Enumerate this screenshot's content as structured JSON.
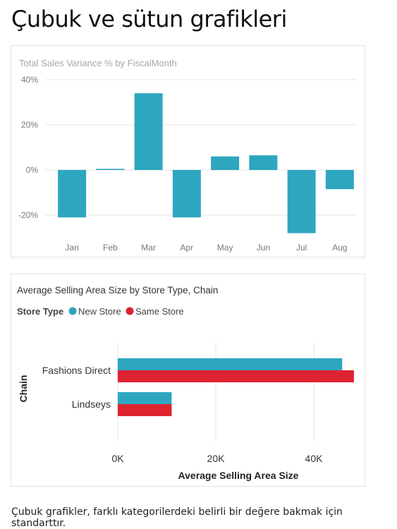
{
  "page": {
    "title": "Çubuk ve sütun grafikleri",
    "caption": "Çubuk grafikler, farklı kategorilerdeki belirli bir değere bakmak için standarttır."
  },
  "colors": {
    "teal": "#2ea6c0",
    "red": "#df2230",
    "grid": "#e6e6e6",
    "axis_text": "#777777",
    "chart1_title": "#a6a6a6",
    "chart2_title": "#333333"
  },
  "chart_data": [
    {
      "type": "bar",
      "orientation": "vertical",
      "title": "Total Sales Variance % by FiscalMonth",
      "categories": [
        "Jan",
        "Feb",
        "Mar",
        "Apr",
        "May",
        "Jun",
        "Jul",
        "Aug"
      ],
      "values": [
        -21,
        0.5,
        34,
        -21,
        6,
        6.5,
        -28,
        -8.5
      ],
      "yticks": [
        40,
        20,
        0,
        -20
      ],
      "yticklabels": [
        "40%",
        "20%",
        "0%",
        "-20%"
      ],
      "ylim": [
        -30,
        40
      ],
      "grid": true,
      "color": "#2ea6c0"
    },
    {
      "type": "bar",
      "orientation": "horizontal",
      "title": "Average Selling Area Size by Store Type, Chain",
      "legend_title": "Store Type",
      "legend_position": "top-left",
      "categories": [
        "Fashions Direct",
        "Lindseys"
      ],
      "series": [
        {
          "name": "New Store",
          "color": "#2ea6c0",
          "values": [
            45800,
            11000
          ]
        },
        {
          "name": "Same Store",
          "color": "#df2230",
          "values": [
            48200,
            11000
          ]
        }
      ],
      "xlabel": "Average Selling Area Size",
      "ylabel": "Chain",
      "xticks": [
        0,
        20000,
        40000
      ],
      "xticklabels": [
        "0K",
        "20K",
        "40K"
      ],
      "xlim": [
        0,
        48500
      ],
      "grid": true
    }
  ]
}
